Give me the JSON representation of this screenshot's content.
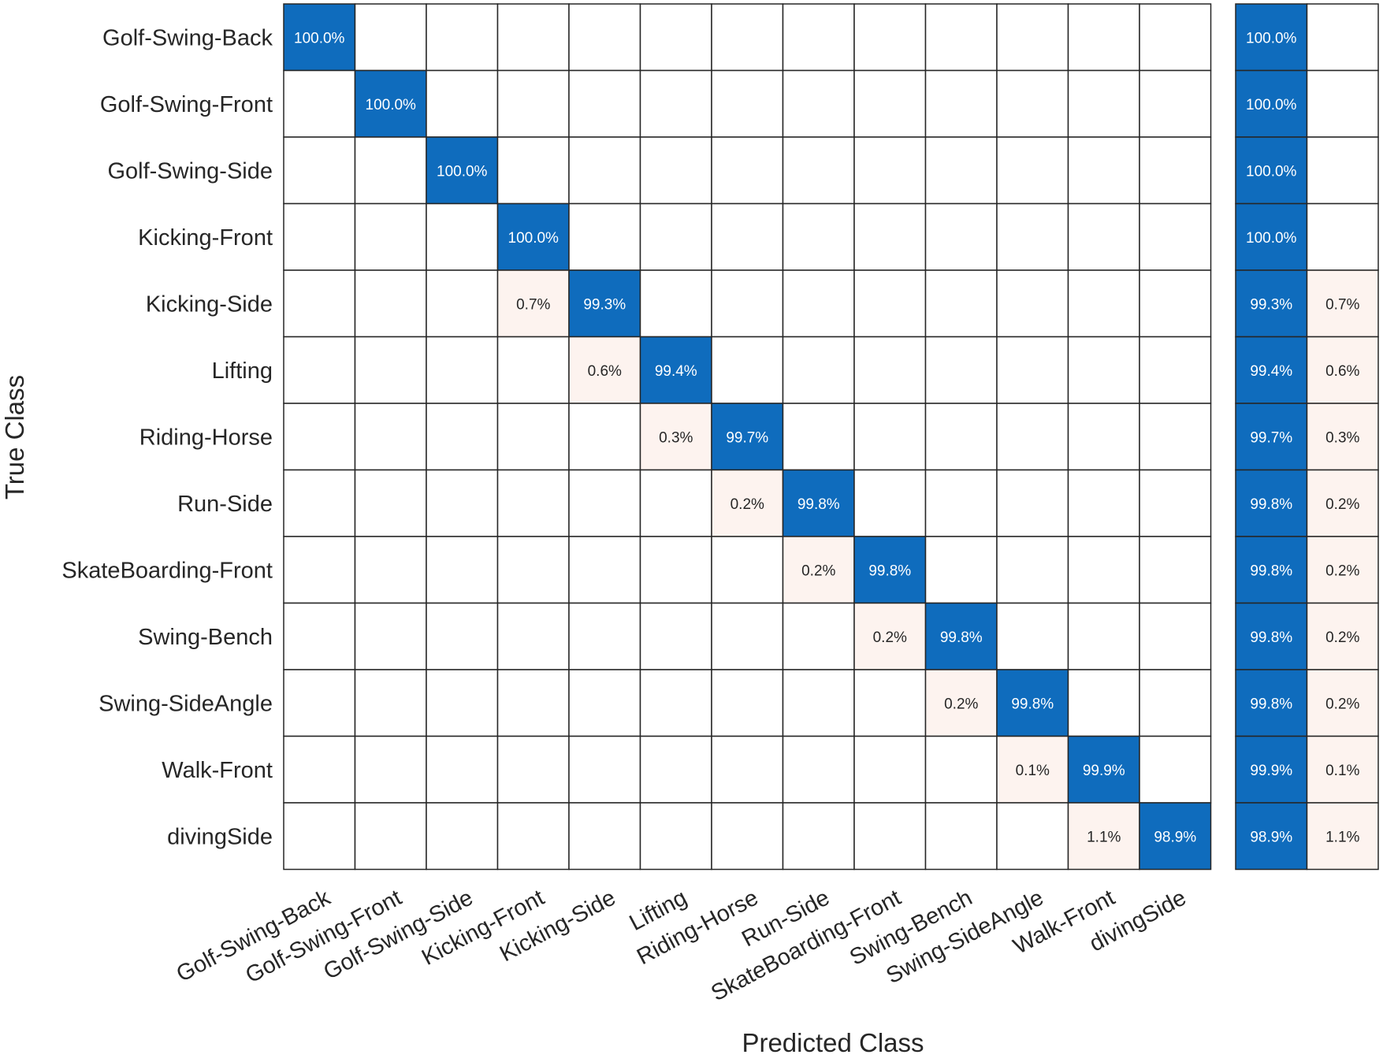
{
  "chart_data": {
    "type": "heatmap",
    "title": "",
    "xlabel": "Predicted Class",
    "ylabel": "True Class",
    "classes": [
      "Golf-Swing-Back",
      "Golf-Swing-Front",
      "Golf-Swing-Side",
      "Kicking-Front",
      "Kicking-Side",
      "Lifting",
      "Riding-Horse",
      "Run-Side",
      "SkateBoarding-Front",
      "Swing-Bench",
      "Swing-SideAngle",
      "Walk-Front",
      "divingSide"
    ],
    "cells": [
      {
        "row": 0,
        "col": 0,
        "value": 100.0,
        "label": "100.0%"
      },
      {
        "row": 1,
        "col": 1,
        "value": 100.0,
        "label": "100.0%"
      },
      {
        "row": 2,
        "col": 2,
        "value": 100.0,
        "label": "100.0%"
      },
      {
        "row": 3,
        "col": 3,
        "value": 100.0,
        "label": "100.0%"
      },
      {
        "row": 4,
        "col": 3,
        "value": 0.7,
        "label": "0.7%"
      },
      {
        "row": 4,
        "col": 4,
        "value": 99.3,
        "label": "99.3%"
      },
      {
        "row": 5,
        "col": 4,
        "value": 0.6,
        "label": "0.6%"
      },
      {
        "row": 5,
        "col": 5,
        "value": 99.4,
        "label": "99.4%"
      },
      {
        "row": 6,
        "col": 5,
        "value": 0.3,
        "label": "0.3%"
      },
      {
        "row": 6,
        "col": 6,
        "value": 99.7,
        "label": "99.7%"
      },
      {
        "row": 7,
        "col": 6,
        "value": 0.2,
        "label": "0.2%"
      },
      {
        "row": 7,
        "col": 7,
        "value": 99.8,
        "label": "99.8%"
      },
      {
        "row": 8,
        "col": 7,
        "value": 0.2,
        "label": "0.2%"
      },
      {
        "row": 8,
        "col": 8,
        "value": 99.8,
        "label": "99.8%"
      },
      {
        "row": 9,
        "col": 8,
        "value": 0.2,
        "label": "0.2%"
      },
      {
        "row": 9,
        "col": 9,
        "value": 99.8,
        "label": "99.8%"
      },
      {
        "row": 10,
        "col": 9,
        "value": 0.2,
        "label": "0.2%"
      },
      {
        "row": 10,
        "col": 10,
        "value": 99.8,
        "label": "99.8%"
      },
      {
        "row": 11,
        "col": 10,
        "value": 0.1,
        "label": "0.1%"
      },
      {
        "row": 11,
        "col": 11,
        "value": 99.9,
        "label": "99.9%"
      },
      {
        "row": 12,
        "col": 11,
        "value": 1.1,
        "label": "1.1%"
      },
      {
        "row": 12,
        "col": 12,
        "value": 98.9,
        "label": "98.9%"
      }
    ],
    "row_summary": [
      {
        "correct": "100.0%",
        "incorrect": ""
      },
      {
        "correct": "100.0%",
        "incorrect": ""
      },
      {
        "correct": "100.0%",
        "incorrect": ""
      },
      {
        "correct": "100.0%",
        "incorrect": ""
      },
      {
        "correct": "99.3%",
        "incorrect": "0.7%"
      },
      {
        "correct": "99.4%",
        "incorrect": "0.6%"
      },
      {
        "correct": "99.7%",
        "incorrect": "0.3%"
      },
      {
        "correct": "99.8%",
        "incorrect": "0.2%"
      },
      {
        "correct": "99.8%",
        "incorrect": "0.2%"
      },
      {
        "correct": "99.8%",
        "incorrect": "0.2%"
      },
      {
        "correct": "99.8%",
        "incorrect": "0.2%"
      },
      {
        "correct": "99.9%",
        "incorrect": "0.1%"
      },
      {
        "correct": "98.9%",
        "incorrect": "1.1%"
      }
    ],
    "colors": {
      "correct": "#0f6cbd",
      "incorrect": "#fdf3ef",
      "grid": "#262626",
      "text_light": "#ffffff",
      "text_dark": "#262626"
    }
  }
}
